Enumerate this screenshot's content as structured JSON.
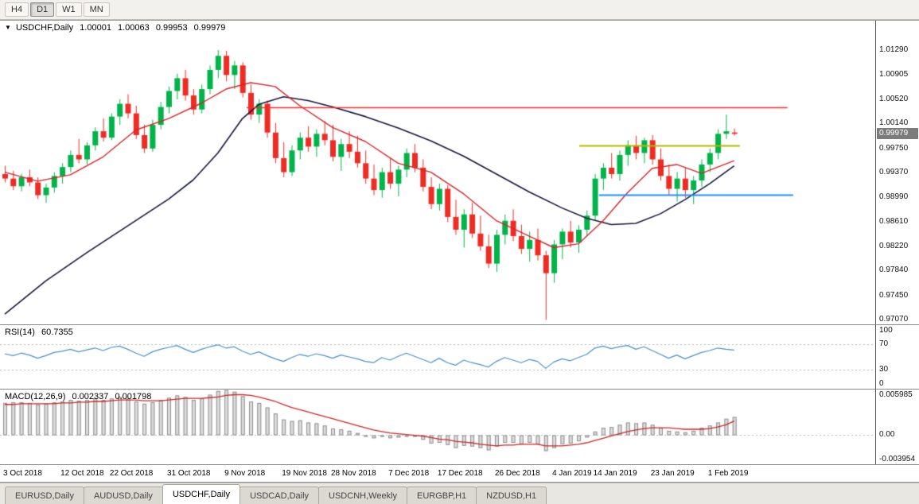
{
  "toolbar": {
    "timeframes": [
      {
        "label": "H4",
        "active": false
      },
      {
        "label": "D1",
        "active": true
      },
      {
        "label": "W1",
        "active": false
      },
      {
        "label": "MN",
        "active": false
      }
    ]
  },
  "icons": {
    "chart_menu_arrow": "▼"
  },
  "chart": {
    "symbol_period": "USDCHF,Daily",
    "open": "1.00001",
    "high": "1.00063",
    "low": "0.99953",
    "close": "0.99979",
    "current_price": "0.99979"
  },
  "rsi_panel": {
    "name": "RSI(14)",
    "value": "60.7355"
  },
  "macd_panel": {
    "name": "MACD(12,26,9)",
    "value": "0.002337",
    "signal_value": "0.001798"
  },
  "colors": {
    "bull": "#00b44a",
    "bear": "#ee2c24",
    "ma_fast_red": "#d8232a",
    "ma_slow_dark": "#16163a",
    "resistance_line": "#ff2a2a",
    "pivot_line_yellow": "#b5b800",
    "support_line_blue": "#1e90ff",
    "rsi_line": "#4a8fc7",
    "macd_signal": "#cf2525",
    "macd_hist_fill": "#dcdcdc",
    "macd_hist_stroke": "#8f8f8f",
    "grid_dotted": "#b8b8b8"
  },
  "tabs": [
    {
      "label": "EURUSD,Daily",
      "active": false
    },
    {
      "label": "AUDUSD,Daily",
      "active": false
    },
    {
      "label": "USDCHF,Daily",
      "active": true
    },
    {
      "label": "USDCAD,Daily",
      "active": false
    },
    {
      "label": "USDCNH,Weekly",
      "active": false
    },
    {
      "label": "EURGBP,H1",
      "active": false
    },
    {
      "label": "NZDUSD,H1",
      "active": false
    }
  ],
  "chart_data": [
    {
      "name": "price",
      "type": "candlestick",
      "symbol": "USDCHF",
      "timeframe": "Daily",
      "y_range": [
        0.97,
        1.0175
      ],
      "y_axis_labels": [
        "1.01290",
        "1.00905",
        "1.00520",
        "1.00140",
        "0.99750",
        "0.99370",
        "0.98990",
        "0.98610",
        "0.98220",
        "0.97840",
        "0.97450",
        "0.97070"
      ],
      "x_axis_dates": [
        {
          "label": "3 Oct 2018",
          "i": 0
        },
        {
          "label": "12 Oct 2018",
          "i": 7
        },
        {
          "label": "22 Oct 2018",
          "i": 13
        },
        {
          "label": "31 Oct 2018",
          "i": 20
        },
        {
          "label": "9 Nov 2018",
          "i": 27
        },
        {
          "label": "19 Nov 2018",
          "i": 34
        },
        {
          "label": "28 Nov 2018",
          "i": 40
        },
        {
          "label": "7 Dec 2018",
          "i": 47
        },
        {
          "label": "17 Dec 2018",
          "i": 53
        },
        {
          "label": "26 Dec 2018",
          "i": 60
        },
        {
          "label": "4 Jan 2019",
          "i": 67
        },
        {
          "label": "14 Jan 2019",
          "i": 72
        },
        {
          "label": "23 Jan 2019",
          "i": 79
        },
        {
          "label": "1 Feb 2019",
          "i": 86
        }
      ],
      "candles": [
        [
          0.9935,
          0.9948,
          0.9922,
          0.9928
        ],
        [
          0.9928,
          0.994,
          0.991,
          0.9916
        ],
        [
          0.9916,
          0.9935,
          0.9908,
          0.993
        ],
        [
          0.993,
          0.9942,
          0.9916,
          0.9922
        ],
        [
          0.9922,
          0.993,
          0.9896,
          0.9902
        ],
        [
          0.9902,
          0.992,
          0.989,
          0.9914
        ],
        [
          0.9914,
          0.9938,
          0.9906,
          0.9932
        ],
        [
          0.9932,
          0.9952,
          0.992,
          0.9946
        ],
        [
          0.9946,
          0.9972,
          0.9938,
          0.9965
        ],
        [
          0.9965,
          0.999,
          0.9952,
          0.9958
        ],
        [
          0.9958,
          0.9985,
          0.995,
          0.998
        ],
        [
          0.998,
          1.0008,
          0.9972,
          1.0002
        ],
        [
          1.0002,
          1.0022,
          0.9986,
          0.9992
        ],
        [
          0.9992,
          1.003,
          0.9988,
          1.0025
        ],
        [
          1.0025,
          1.0052,
          1.0012,
          1.0045
        ],
        [
          1.0045,
          1.006,
          1.0022,
          1.003
        ],
        [
          1.003,
          1.0042,
          0.999,
          0.9996
        ],
        [
          0.9996,
          1.0012,
          0.9968,
          0.9975
        ],
        [
          0.9975,
          1.002,
          0.997,
          1.0012
        ],
        [
          1.0012,
          1.0048,
          1.0005,
          1.004
        ],
        [
          1.004,
          1.0072,
          1.003,
          1.0065
        ],
        [
          1.0065,
          1.0092,
          1.0052,
          1.0085
        ],
        [
          1.0085,
          1.0098,
          1.005,
          1.0058
        ],
        [
          1.0058,
          1.0068,
          1.0028,
          1.0036
        ],
        [
          1.0036,
          1.0075,
          1.003,
          1.0068
        ],
        [
          1.0068,
          1.0105,
          1.006,
          1.0098
        ],
        [
          1.0098,
          1.0129,
          1.0085,
          1.012
        ],
        [
          1.012,
          1.0128,
          1.008,
          1.009
        ],
        [
          1.009,
          1.0112,
          1.0068,
          1.0105
        ],
        [
          1.0105,
          1.011,
          1.0055,
          1.0062
        ],
        [
          1.0062,
          1.0075,
          1.002,
          1.0028
        ],
        [
          1.0028,
          1.0052,
          1.0015,
          1.0045
        ],
        [
          1.0045,
          1.005,
          0.9992,
          1.0
        ],
        [
          1.0,
          1.0015,
          0.9952,
          0.996
        ],
        [
          0.996,
          0.9985,
          0.993,
          0.9938
        ],
        [
          0.9938,
          0.998,
          0.9932,
          0.9972
        ],
        [
          0.9972,
          1.0,
          0.9958,
          0.9992
        ],
        [
          0.9992,
          1.001,
          0.997,
          0.9978
        ],
        [
          0.9978,
          1.0005,
          0.9962,
          0.9998
        ],
        [
          0.9998,
          1.0018,
          0.998,
          0.9988
        ],
        [
          0.9988,
          1.0012,
          0.9955,
          0.9962
        ],
        [
          0.9962,
          0.999,
          0.994,
          0.9982
        ],
        [
          0.9982,
          1.0002,
          0.996,
          0.997
        ],
        [
          0.997,
          0.9995,
          0.9945,
          0.9952
        ],
        [
          0.9952,
          0.9972,
          0.992,
          0.9928
        ],
        [
          0.9928,
          0.995,
          0.9902,
          0.991
        ],
        [
          0.991,
          0.9945,
          0.9898,
          0.9938
        ],
        [
          0.9938,
          0.996,
          0.9912,
          0.992
        ],
        [
          0.992,
          0.9948,
          0.99,
          0.9942
        ],
        [
          0.9942,
          0.9975,
          0.993,
          0.9968
        ],
        [
          0.9968,
          0.9982,
          0.9938,
          0.9945
        ],
        [
          0.9945,
          0.9958,
          0.9908,
          0.9915
        ],
        [
          0.9915,
          0.993,
          0.988,
          0.9888
        ],
        [
          0.9888,
          0.992,
          0.9878,
          0.9912
        ],
        [
          0.9912,
          0.9918,
          0.986,
          0.9868
        ],
        [
          0.9868,
          0.9895,
          0.984,
          0.9848
        ],
        [
          0.9848,
          0.988,
          0.982,
          0.9872
        ],
        [
          0.9872,
          0.989,
          0.9835,
          0.9842
        ],
        [
          0.9842,
          0.987,
          0.9815,
          0.9822
        ],
        [
          0.9822,
          0.984,
          0.9788,
          0.9795
        ],
        [
          0.9795,
          0.9848,
          0.9782,
          0.984
        ],
        [
          0.984,
          0.9872,
          0.9825,
          0.9862
        ],
        [
          0.9862,
          0.988,
          0.983,
          0.9838
        ],
        [
          0.9838,
          0.9856,
          0.981,
          0.9818
        ],
        [
          0.9818,
          0.9845,
          0.9798,
          0.9832
        ],
        [
          0.9832,
          0.985,
          0.98,
          0.9808
        ],
        [
          0.9808,
          0.9815,
          0.9707,
          0.978
        ],
        [
          0.978,
          0.9832,
          0.9765,
          0.9825
        ],
        [
          0.9825,
          0.985,
          0.9802,
          0.9845
        ],
        [
          0.9845,
          0.9862,
          0.982,
          0.9828
        ],
        [
          0.9828,
          0.9855,
          0.9812,
          0.9848
        ],
        [
          0.9848,
          0.9878,
          0.9838,
          0.987
        ],
        [
          0.987,
          0.9935,
          0.9862,
          0.9928
        ],
        [
          0.9928,
          0.9952,
          0.991,
          0.9945
        ],
        [
          0.9945,
          0.9968,
          0.9928,
          0.9935
        ],
        [
          0.9935,
          0.9972,
          0.9925,
          0.9965
        ],
        [
          0.9965,
          0.9988,
          0.9948,
          0.998
        ],
        [
          0.998,
          0.9995,
          0.9958,
          0.9968
        ],
        [
          0.9968,
          0.9992,
          0.9952,
          0.9988
        ],
        [
          0.9988,
          0.9996,
          0.995,
          0.9958
        ],
        [
          0.9958,
          0.9975,
          0.9925,
          0.9932
        ],
        [
          0.9932,
          0.995,
          0.9902,
          0.9912
        ],
        [
          0.9912,
          0.9938,
          0.9892,
          0.9928
        ],
        [
          0.9928,
          0.9945,
          0.9898,
          0.991
        ],
        [
          0.991,
          0.9932,
          0.9888,
          0.9925
        ],
        [
          0.9925,
          0.9958,
          0.9915,
          0.995
        ],
        [
          0.995,
          0.9975,
          0.9938,
          0.9968
        ],
        [
          0.9968,
          1.0005,
          0.9958,
          0.9998
        ],
        [
          0.9998,
          1.0028,
          0.999,
          1.0002
        ],
        [
          1.00001,
          1.00063,
          0.99953,
          0.99979
        ]
      ],
      "overlays": {
        "ma_fast_red": [
          [
            0,
            0.9938
          ],
          [
            4,
            0.9924
          ],
          [
            8,
            0.9934
          ],
          [
            12,
            0.9962
          ],
          [
            16,
            1.0004
          ],
          [
            20,
            1.0022
          ],
          [
            24,
            1.0046
          ],
          [
            27,
            1.0068
          ],
          [
            30,
            1.0078
          ],
          [
            33,
            1.0072
          ],
          [
            36,
            1.0042
          ],
          [
            40,
            1.0008
          ],
          [
            44,
            0.9986
          ],
          [
            48,
            0.9952
          ],
          [
            52,
            0.9938
          ],
          [
            56,
            0.9904
          ],
          [
            60,
            0.9862
          ],
          [
            64,
            0.9838
          ],
          [
            67,
            0.982
          ],
          [
            70,
            0.9826
          ],
          [
            73,
            0.9862
          ],
          [
            76,
            0.9906
          ],
          [
            79,
            0.9944
          ],
          [
            82,
            0.995
          ],
          [
            85,
            0.9936
          ],
          [
            89,
            0.9956
          ]
        ],
        "ma_slow_dark": [
          [
            0,
            0.9716
          ],
          [
            5,
            0.9768
          ],
          [
            10,
            0.9812
          ],
          [
            15,
            0.9854
          ],
          [
            20,
            0.9896
          ],
          [
            23,
            0.9926
          ],
          [
            26,
            0.9968
          ],
          [
            29,
            1.0022
          ],
          [
            31,
            1.0044
          ],
          [
            34,
            1.0056
          ],
          [
            37,
            1.005
          ],
          [
            40,
            1.004
          ],
          [
            44,
            1.0025
          ],
          [
            48,
            1.0007
          ],
          [
            52,
            0.9987
          ],
          [
            56,
            0.9963
          ],
          [
            60,
            0.9935
          ],
          [
            64,
            0.9907
          ],
          [
            68,
            0.9882
          ],
          [
            71,
            0.9866
          ],
          [
            74,
            0.9856
          ],
          [
            77,
            0.9858
          ],
          [
            80,
            0.9873
          ],
          [
            83,
            0.9895
          ],
          [
            86,
            0.992
          ],
          [
            89,
            0.9948
          ]
        ]
      },
      "lines": [
        {
          "name": "resistance-line",
          "price": 1.004,
          "from_i": 29.5,
          "to_i": 95.5,
          "color_key": "resistance_line",
          "width": 1.5
        },
        {
          "name": "yellow-level-line",
          "price": 0.998,
          "from_i": 70.1,
          "to_i": 89.7,
          "color_key": "pivot_line_yellow",
          "width": 2
        },
        {
          "name": "support-line",
          "price": 0.9903,
          "from_i": 72.5,
          "to_i": 96.2,
          "color_key": "support_line_blue",
          "width": 2
        }
      ]
    },
    {
      "name": "rsi",
      "type": "line",
      "title": "RSI(14)",
      "last_value": 60.7355,
      "levels": [
        70,
        30
      ],
      "y_axis_labels": [
        "100",
        "70",
        "30",
        "0"
      ],
      "y_range": [
        0,
        100
      ],
      "values": [
        55,
        52,
        56,
        53,
        48,
        52,
        57,
        59,
        62,
        58,
        61,
        64,
        60,
        65,
        67,
        62,
        56,
        51,
        58,
        62,
        65,
        68,
        62,
        57,
        62,
        66,
        69,
        64,
        66,
        59,
        54,
        58,
        52,
        47,
        43,
        49,
        54,
        51,
        55,
        52,
        48,
        53,
        50,
        47,
        43,
        41,
        49,
        45,
        51,
        56,
        51,
        46,
        41,
        48,
        41,
        37,
        45,
        41,
        38,
        34,
        43,
        49,
        45,
        41,
        46,
        43,
        32,
        42,
        47,
        44,
        49,
        54,
        64,
        67,
        63,
        66,
        68,
        62,
        66,
        60,
        54,
        48,
        53,
        47,
        52,
        57,
        60,
        64,
        62,
        60.74
      ]
    },
    {
      "name": "macd",
      "type": "bar",
      "title": "MACD(12,26,9)",
      "last_values": [
        0.002337,
        0.001798
      ],
      "y_axis_labels": [
        "0.005985",
        "0.00",
        "-0.003954"
      ],
      "y_range": [
        -0.003954,
        0.005985
      ],
      "histogram": [
        0.0042,
        0.0043,
        0.0043,
        0.0042,
        0.004,
        0.0041,
        0.0043,
        0.0044,
        0.0046,
        0.0045,
        0.0046,
        0.0048,
        0.0046,
        0.0048,
        0.005,
        0.0048,
        0.0044,
        0.0041,
        0.0043,
        0.0046,
        0.0049,
        0.0052,
        0.005,
        0.0046,
        0.0048,
        0.0053,
        0.0058,
        0.0059,
        0.0057,
        0.0051,
        0.0044,
        0.0042,
        0.0036,
        0.0028,
        0.002,
        0.0018,
        0.0019,
        0.0016,
        0.0015,
        0.0012,
        0.0008,
        0.0007,
        0.0005,
        0.0002,
        -0.0002,
        -0.0005,
        -0.0003,
        -0.0005,
        -0.0004,
        -0.0001,
        -0.0003,
        -0.0007,
        -0.0012,
        -0.0011,
        -0.0014,
        -0.0018,
        -0.0015,
        -0.0016,
        -0.0018,
        -0.0021,
        -0.0016,
        -0.0011,
        -0.0011,
        -0.0013,
        -0.0011,
        -0.0013,
        -0.0022,
        -0.0018,
        -0.0013,
        -0.0012,
        -0.0009,
        -0.0004,
        0.0004,
        0.0009,
        0.001,
        0.0013,
        0.0016,
        0.0015,
        0.0016,
        0.0013,
        0.0009,
        0.0005,
        0.0004,
        0.0003,
        0.0005,
        0.0009,
        0.0012,
        0.0016,
        0.0021,
        0.002337
      ],
      "signal": [
        0.004,
        0.004,
        0.0041,
        0.0041,
        0.0041,
        0.0041,
        0.0041,
        0.0042,
        0.0042,
        0.0043,
        0.0043,
        0.0044,
        0.0044,
        0.0045,
        0.0046,
        0.0046,
        0.0046,
        0.0045,
        0.0045,
        0.0045,
        0.0046,
        0.0047,
        0.0048,
        0.0048,
        0.0048,
        0.0049,
        0.005,
        0.0052,
        0.0053,
        0.0053,
        0.0052,
        0.005,
        0.0047,
        0.0044,
        0.004,
        0.0036,
        0.0033,
        0.003,
        0.0027,
        0.0024,
        0.0021,
        0.0018,
        0.0015,
        0.0012,
        0.0009,
        0.0006,
        0.0004,
        0.0002,
        0.0001,
        0.0,
        -0.0001,
        -0.0002,
        -0.0004,
        -0.0006,
        -0.0007,
        -0.0009,
        -0.001,
        -0.0011,
        -0.0013,
        -0.0014,
        -0.0015,
        -0.0014,
        -0.0014,
        -0.0013,
        -0.0013,
        -0.0013,
        -0.0015,
        -0.0015,
        -0.0015,
        -0.0014,
        -0.0013,
        -0.0011,
        -0.0008,
        -0.0005,
        -0.0002,
        0.0001,
        0.0004,
        0.0006,
        0.0008,
        0.0009,
        0.0009,
        0.0009,
        0.0008,
        0.0007,
        0.0007,
        0.0007,
        0.0008,
        0.001,
        0.0013,
        0.001798
      ]
    }
  ]
}
